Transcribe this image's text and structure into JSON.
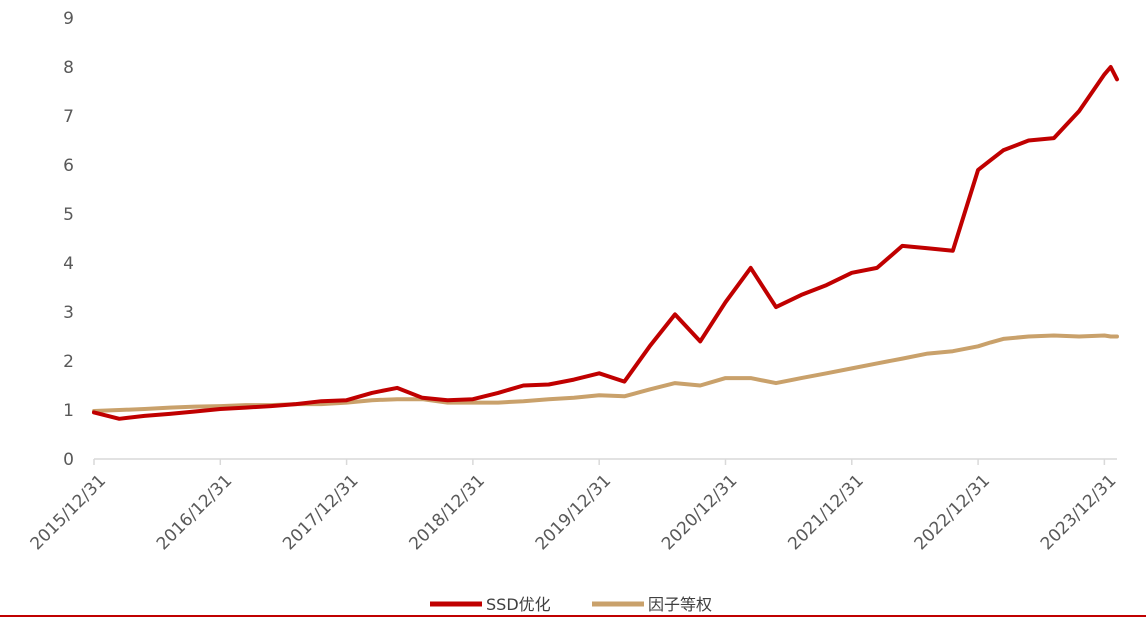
{
  "chart_data": {
    "type": "line",
    "title": "",
    "xlabel": "",
    "ylabel": "",
    "ylim": [
      0,
      9
    ],
    "yticks": [
      "0",
      "1",
      "2",
      "3",
      "4",
      "5",
      "6",
      "7",
      "8",
      "9"
    ],
    "xticks": [
      "2015/12/31",
      "2016/12/31",
      "2017/12/31",
      "2018/12/31",
      "2019/12/31",
      "2020/12/31",
      "2021/12/31",
      "2022/12/31",
      "2023/12/31"
    ],
    "grid": false,
    "legend": "bottom-center",
    "x": [
      2016.0,
      2016.2,
      2016.4,
      2016.6,
      2016.8,
      2017.0,
      2017.2,
      2017.4,
      2017.6,
      2017.8,
      2018.0,
      2018.2,
      2018.4,
      2018.6,
      2018.8,
      2019.0,
      2019.2,
      2019.4,
      2019.6,
      2019.8,
      2020.0,
      2020.2,
      2020.4,
      2020.6,
      2020.8,
      2021.0,
      2021.2,
      2021.4,
      2021.6,
      2021.8,
      2022.0,
      2022.2,
      2022.4,
      2022.6,
      2022.8,
      2023.0,
      2023.1,
      2023.2,
      2023.4,
      2023.6,
      2023.8,
      2024.0,
      2024.05,
      2024.1
    ],
    "series": [
      {
        "name": "SSD优化",
        "color": "#c00000",
        "values": [
          0.95,
          0.82,
          0.88,
          0.92,
          0.97,
          1.02,
          1.05,
          1.08,
          1.12,
          1.18,
          1.2,
          1.35,
          1.45,
          1.25,
          1.2,
          1.22,
          1.35,
          1.5,
          1.52,
          1.62,
          1.75,
          1.58,
          2.3,
          2.95,
          2.4,
          3.2,
          3.9,
          3.1,
          3.35,
          3.55,
          3.8,
          3.9,
          4.35,
          4.3,
          4.25,
          5.9,
          6.1,
          6.3,
          6.5,
          6.55,
          7.1,
          7.85,
          8.0,
          7.75
        ]
      },
      {
        "name": "因子等权",
        "color": "#c9a16b",
        "values": [
          0.98,
          1.0,
          1.02,
          1.05,
          1.07,
          1.08,
          1.1,
          1.1,
          1.12,
          1.12,
          1.15,
          1.2,
          1.22,
          1.22,
          1.15,
          1.15,
          1.15,
          1.18,
          1.22,
          1.25,
          1.3,
          1.28,
          1.42,
          1.55,
          1.5,
          1.65,
          1.65,
          1.55,
          1.65,
          1.75,
          1.85,
          1.95,
          2.05,
          2.15,
          2.2,
          2.3,
          2.38,
          2.45,
          2.5,
          2.52,
          2.5,
          2.52,
          2.5,
          2.5
        ]
      }
    ]
  }
}
